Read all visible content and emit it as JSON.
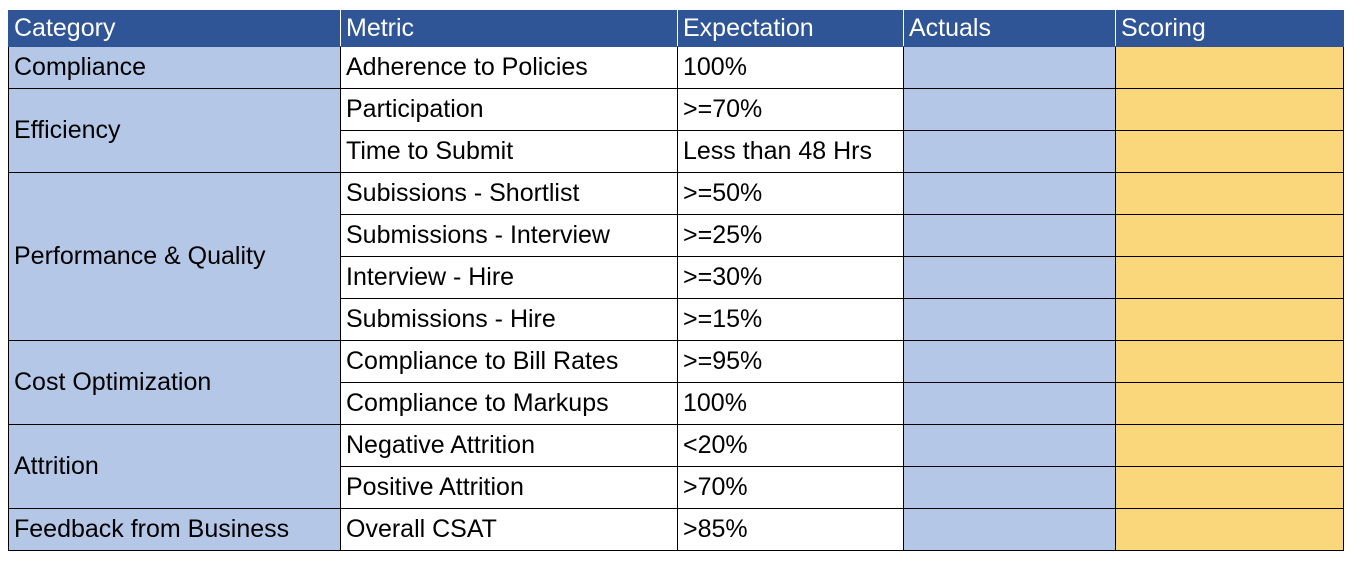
{
  "headers": {
    "category": "Category",
    "metric": "Metric",
    "expectation": "Expectation",
    "actuals": "Actuals",
    "scoring": "Scoring"
  },
  "groups": [
    {
      "category": "Compliance",
      "rows": [
        {
          "metric": "Adherence to Policies",
          "expectation": "100%",
          "actuals": "",
          "scoring": ""
        }
      ]
    },
    {
      "category": "Efficiency",
      "rows": [
        {
          "metric": "Participation",
          "expectation": ">=70%",
          "actuals": "",
          "scoring": ""
        },
        {
          "metric": "Time to Submit",
          "expectation": "Less than 48 Hrs",
          "actuals": "",
          "scoring": ""
        }
      ]
    },
    {
      "category": "Performance & Quality",
      "rows": [
        {
          "metric": "Subissions - Shortlist",
          "expectation": ">=50%",
          "actuals": "",
          "scoring": ""
        },
        {
          "metric": "Submissions - Interview",
          "expectation": ">=25%",
          "actuals": "",
          "scoring": ""
        },
        {
          "metric": "Interview - Hire",
          "expectation": ">=30%",
          "actuals": "",
          "scoring": ""
        },
        {
          "metric": "Submissions - Hire",
          "expectation": ">=15%",
          "actuals": "",
          "scoring": ""
        }
      ]
    },
    {
      "category": "Cost Optimization",
      "rows": [
        {
          "metric": "Compliance to Bill Rates",
          "expectation": ">=95%",
          "actuals": "",
          "scoring": ""
        },
        {
          "metric": "Compliance to Markups",
          "expectation": "100%",
          "actuals": "",
          "scoring": ""
        }
      ]
    },
    {
      "category": "Attrition",
      "rows": [
        {
          "metric": "Negative Attrition",
          "expectation": "<20%",
          "actuals": "",
          "scoring": ""
        },
        {
          "metric": "Positive Attrition",
          "expectation": ">70%",
          "actuals": "",
          "scoring": ""
        }
      ]
    },
    {
      "category": "Feedback from Business",
      "rows": [
        {
          "metric": "Overall CSAT",
          "expectation": ">85%",
          "actuals": "",
          "scoring": ""
        }
      ]
    }
  ],
  "colors": {
    "header_bg": "#2f5597",
    "header_text": "#ffffff",
    "category_bg": "#b4c7e7",
    "actuals_bg": "#b4c7e7",
    "scoring_bg": "#f9d77a"
  }
}
